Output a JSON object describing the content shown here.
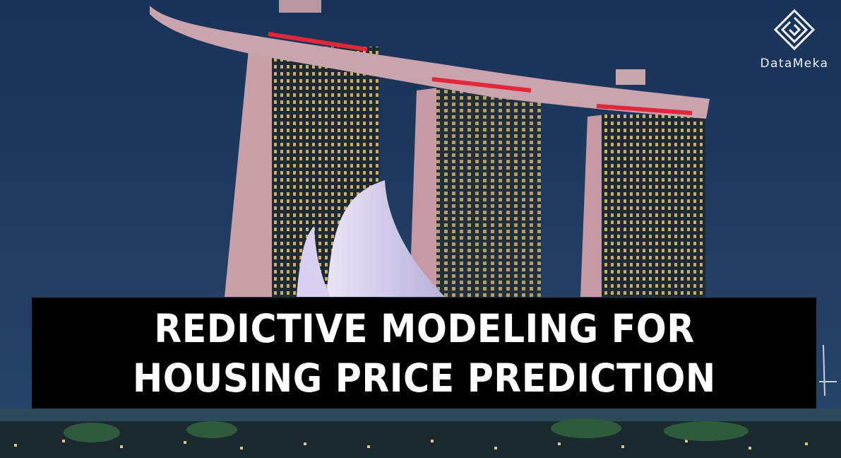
{
  "brand": {
    "name": "DataMeka",
    "logo_icon": "diamond-maze-icon"
  },
  "headline": {
    "line1": "REDICTIVE MODELING FOR",
    "line2": "HOUSING PRICE PREDICTION"
  },
  "colors": {
    "sky": "#1d3558",
    "banner": "#000000",
    "headline_text": "#ffffff",
    "accent_red": "#e0283a"
  }
}
